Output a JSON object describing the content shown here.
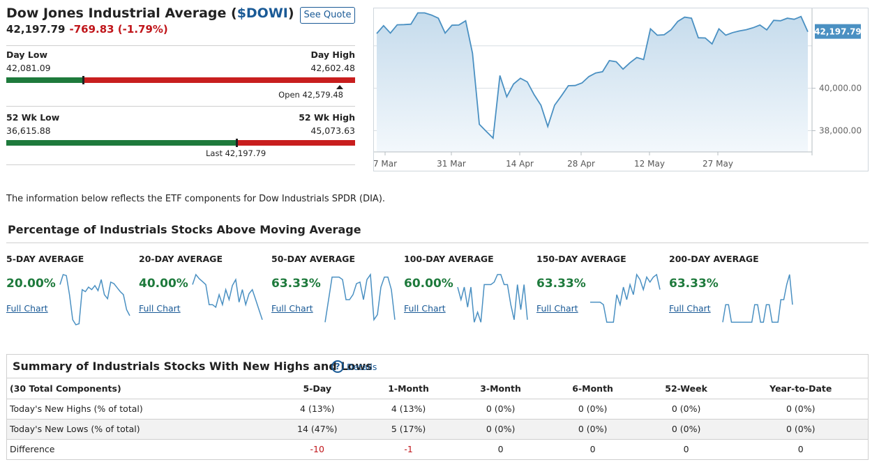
{
  "header": {
    "title_prefix": "Dow Jones Industrial Average (",
    "symbol": "$DOWI",
    "title_suffix": ")",
    "see_quote": "See Quote",
    "last": "42,197.79",
    "change": "-769.83 (-1.79%)",
    "colors": {
      "up": "#1e7a3c",
      "down": "#c81e1e",
      "link": "#1a5a96"
    }
  },
  "day_range": {
    "low_label": "Day Low",
    "low": "42,081.09",
    "high_label": "Day High",
    "high": "42,602.48",
    "open_text": "Open 42,579.48",
    "last_fraction": 0.22,
    "open_fraction": 0.955
  },
  "wk52_range": {
    "low_label": "52 Wk Low",
    "low": "36,615.88",
    "high_label": "52 Wk High",
    "high": "45,073.63",
    "last_text": "Last 42,197.79",
    "last_fraction": 0.66
  },
  "chart_data": {
    "type": "area",
    "x_ticks": [
      "7 Mar",
      "31 Mar",
      "14 Apr",
      "28 Apr",
      "12 May",
      "27 May"
    ],
    "y_ticks": [
      "40,000.00",
      "38,000.00"
    ],
    "last_label": "42,197.79",
    "ylim": [
      37000,
      43600
    ],
    "grid_values": [
      42000,
      40000,
      38000
    ],
    "values": [
      42580,
      42950,
      42600,
      42990,
      43000,
      43020,
      43550,
      43550,
      43450,
      43300,
      42600,
      42970,
      42980,
      43180,
      41650,
      38300,
      37970,
      37650,
      40600,
      39600,
      40200,
      40470,
      40300,
      39700,
      39200,
      38200,
      39200,
      39650,
      40120,
      40130,
      40250,
      40550,
      40720,
      40780,
      41300,
      41250,
      40900,
      41200,
      41450,
      41350,
      42800,
      42500,
      42520,
      42750,
      43150,
      43350,
      43300,
      42380,
      42370,
      42090,
      42800,
      42500,
      42620,
      42700,
      42760,
      42850,
      42980,
      42750,
      43200,
      43180,
      43300,
      43250,
      43380,
      42660
    ]
  },
  "info_text": "The information below reflects the ETF components for Dow Industrials SPDR (DIA).",
  "ma": {
    "title": "Percentage of Industrials Stocks Above Moving Average",
    "full_chart": "Full Chart",
    "items": [
      {
        "label": "5-DAY AVERAGE",
        "value": "20.00%",
        "spark": [
          0.8,
          1.0,
          0.98,
          0.6,
          0.1,
          0.0,
          0.02,
          0.7,
          0.66,
          0.75,
          0.7,
          0.78,
          0.68,
          0.9,
          0.6,
          0.52,
          0.85,
          0.82,
          0.74,
          0.66,
          0.6,
          0.3,
          0.18
        ]
      },
      {
        "label": "20-DAY AVERAGE",
        "value": "40.00%",
        "spark": [
          0.8,
          1.0,
          0.92,
          0.86,
          0.8,
          0.4,
          0.4,
          0.35,
          0.6,
          0.4,
          0.7,
          0.5,
          0.78,
          0.9,
          0.45,
          0.7,
          0.4,
          0.62,
          0.7,
          0.5,
          0.3,
          0.1
        ]
      },
      {
        "label": "50-DAY AVERAGE",
        "value": "63.33%",
        "spark": [
          0.05,
          0.5,
          0.95,
          0.95,
          0.95,
          0.9,
          0.5,
          0.5,
          0.6,
          0.82,
          0.85,
          0.5,
          0.9,
          1.0,
          0.1,
          0.2,
          0.75,
          0.95,
          0.95,
          0.7,
          0.1
        ]
      },
      {
        "label": "100-DAY AVERAGE",
        "value": "60.00%",
        "spark": [
          0.75,
          0.5,
          0.75,
          0.35,
          0.75,
          0.05,
          0.25,
          0.05,
          0.8,
          0.8,
          0.8,
          0.85,
          1.0,
          1.0,
          0.8,
          0.8,
          0.4,
          0.1,
          0.8,
          0.3,
          0.8,
          0.1
        ]
      },
      {
        "label": "150-DAY AVERAGE",
        "value": "63.33%",
        "spark": [
          0.45,
          0.45,
          0.45,
          0.45,
          0.4,
          0.05,
          0.05,
          0.05,
          0.6,
          0.4,
          0.75,
          0.5,
          0.8,
          0.6,
          1.0,
          0.9,
          0.7,
          0.95,
          0.85,
          0.95,
          1.0,
          0.7
        ]
      },
      {
        "label": "200-DAY AVERAGE",
        "value": "63.33%",
        "spark": [
          0.05,
          0.4,
          0.4,
          0.05,
          0.05,
          0.05,
          0.05,
          0.05,
          0.05,
          0.05,
          0.05,
          0.4,
          0.4,
          0.05,
          0.05,
          0.4,
          0.4,
          0.05,
          0.05,
          0.05,
          0.5,
          0.5,
          0.8,
          1.0,
          0.4
        ]
      }
    ]
  },
  "summary": {
    "title": "Summary of Industrials Stocks With New Highs and Lows",
    "help": "?",
    "details": "Details",
    "headers": [
      "(30 Total Components)",
      "5-Day",
      "1-Month",
      "3-Month",
      "6-Month",
      "52-Week",
      "Year-to-Date"
    ],
    "rows": [
      [
        "Today's New Highs (% of total)",
        "4 (13%)",
        "4 (13%)",
        "0 (0%)",
        "0 (0%)",
        "0 (0%)",
        "0 (0%)"
      ],
      [
        "Today's New Lows (% of total)",
        "14 (47%)",
        "5 (17%)",
        "0 (0%)",
        "0 (0%)",
        "0 (0%)",
        "0 (0%)"
      ],
      [
        "Difference",
        "-10",
        "-1",
        "0",
        "0",
        "0",
        "0"
      ]
    ]
  }
}
